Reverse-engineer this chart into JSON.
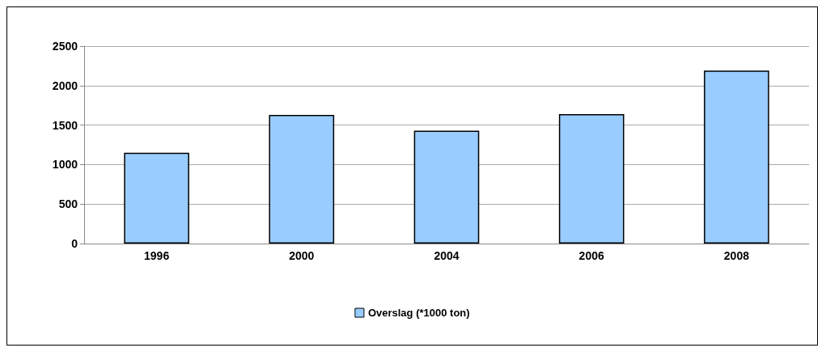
{
  "chart_data": {
    "type": "bar",
    "categories": [
      "1996",
      "2000",
      "2004",
      "2006",
      "2008"
    ],
    "series": [
      {
        "name": "Overslag (*1000 ton)",
        "color": "#99ccff",
        "values": [
          1150,
          1630,
          1430,
          1640,
          2190
        ]
      }
    ],
    "ylim": [
      0,
      2500
    ],
    "yticks": [
      0,
      500,
      1000,
      1500,
      2000,
      2500
    ],
    "grid": "y",
    "legend": "bottom"
  }
}
